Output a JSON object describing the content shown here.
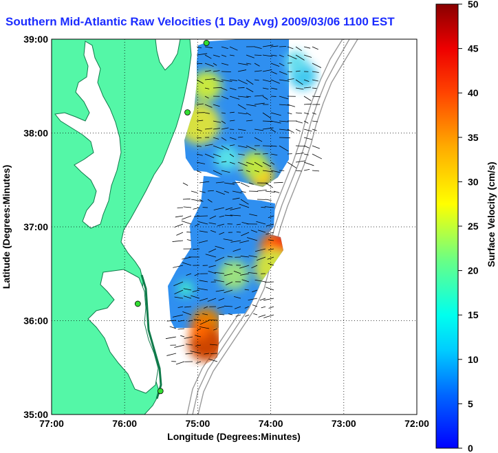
{
  "title": "Southern Mid-Atlantic Raw Velocities (1 Day Avg) 2009/03/06 1100 EST",
  "map": {
    "x_label": "Longitude (Degrees:Minutes)",
    "y_label": "Latitude (Degrees:Minutes)",
    "x_ticks": [
      "77:00",
      "76:00",
      "75:00",
      "74:00",
      "73:00",
      "72:00"
    ],
    "y_ticks": [
      "39:00",
      "38:00",
      "37:00",
      "36:00",
      "35:00"
    ],
    "lon_range": [
      -77,
      -72
    ],
    "lat_range": [
      35,
      39
    ],
    "grid": true,
    "stations": [
      {
        "lon": -74.88,
        "lat": 38.96
      },
      {
        "lon": -75.14,
        "lat": 38.22
      },
      {
        "lon": -75.82,
        "lat": 36.18
      },
      {
        "lon": -75.51,
        "lat": 35.25
      }
    ]
  },
  "colorbar": {
    "label": "Surface Velocity (cm/s)",
    "min": 0,
    "max": 50,
    "ticks": [
      "50",
      "45",
      "40",
      "35",
      "30",
      "25",
      "20",
      "15",
      "10",
      "5",
      "0"
    ],
    "colors": [
      "#0000ff",
      "#00aaff",
      "#00ffff",
      "#88ff88",
      "#ffff00",
      "#ff8800",
      "#ff0000",
      "#880000"
    ]
  },
  "colors": {
    "land": "#54f7a7",
    "title": "#1a2bff",
    "field_low": "#3aa0f0",
    "field_high": "#ff2a00"
  }
}
